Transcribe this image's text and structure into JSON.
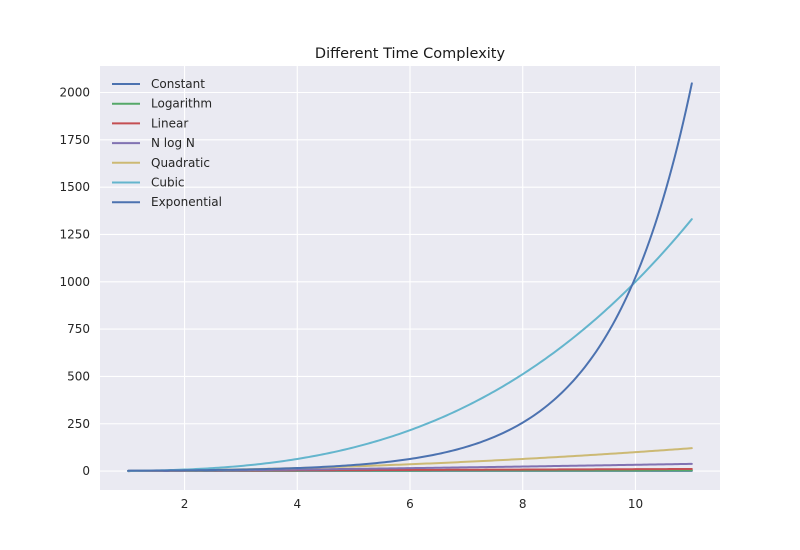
{
  "chart_data": {
    "type": "line",
    "title": "Different Time Complexity",
    "xlabel": "",
    "ylabel": "",
    "xlim": [
      0.5,
      11.5
    ],
    "ylim": [
      -100,
      2140
    ],
    "xticks": [
      2,
      4,
      6,
      8,
      10
    ],
    "yticks": [
      0,
      250,
      500,
      750,
      1000,
      1250,
      1500,
      1750,
      2000
    ],
    "grid": true,
    "legend_position": "top-left",
    "x_domain": [
      1,
      11
    ],
    "series": [
      {
        "name": "Constant",
        "formula": "1",
        "color": "#4c72b0"
      },
      {
        "name": "Logarithm",
        "formula": "log2(n)",
        "color": "#55a868"
      },
      {
        "name": "Linear",
        "formula": "n",
        "color": "#c44e52"
      },
      {
        "name": "N log N",
        "formula": "n*log2(n)",
        "color": "#8172b2"
      },
      {
        "name": "Quadratic",
        "formula": "n^2",
        "color": "#ccb974"
      },
      {
        "name": "Cubic",
        "formula": "n^3",
        "color": "#64b5cd"
      },
      {
        "name": "Exponential",
        "formula": "2^n",
        "color": "#4c72b0"
      }
    ]
  }
}
